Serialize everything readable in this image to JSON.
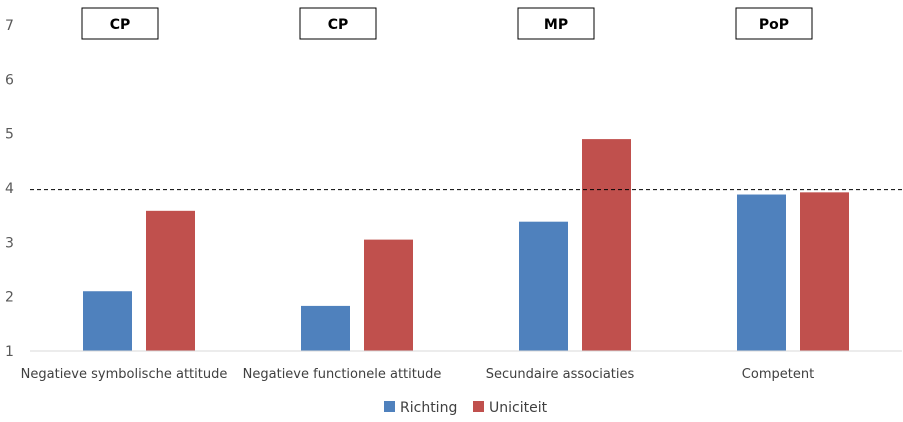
{
  "chart_data": {
    "type": "bar",
    "categories": [
      "Negatieve symbolische attitude",
      "Negatieve functionele attitude",
      "Secundaire associaties",
      "Competent"
    ],
    "category_tags": [
      "CP",
      "CP",
      "MP",
      "PoP"
    ],
    "series": [
      {
        "name": "Richting",
        "color": "#4f81bd",
        "values": [
          2.1,
          1.83,
          3.38,
          3.88
        ]
      },
      {
        "name": "Uniciteit",
        "color": "#c0504d",
        "values": [
          3.58,
          3.05,
          4.9,
          3.92
        ]
      }
    ],
    "ylim": [
      1,
      7
    ],
    "yticks": [
      1,
      2,
      3,
      4,
      5,
      6,
      7
    ],
    "reference_line": 3.97,
    "legend_position": "bottom",
    "grid": false
  }
}
